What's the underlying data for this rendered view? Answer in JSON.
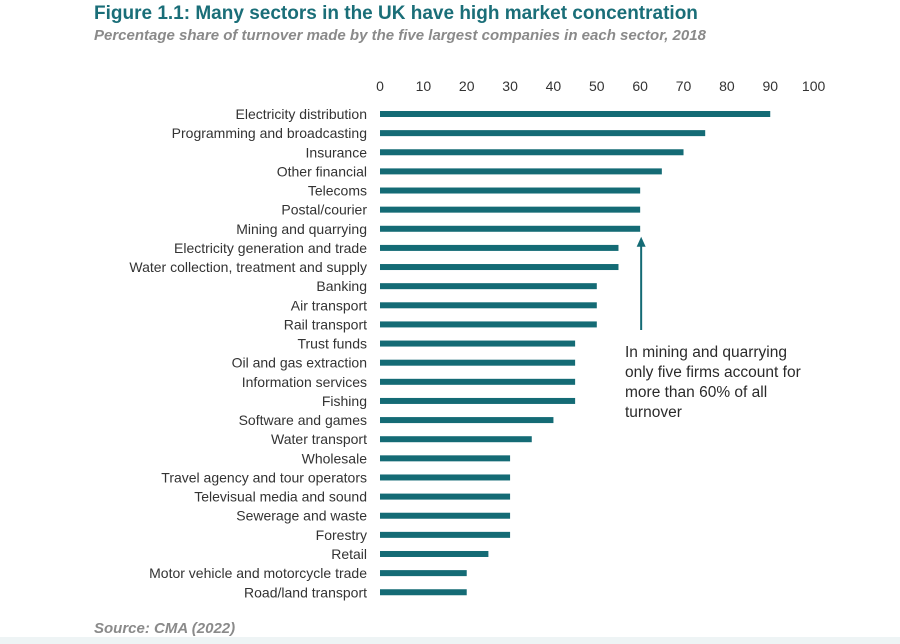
{
  "title": "Figure 1.1: Many sectors in the UK have high market concentration",
  "subtitle": "Percentage share of turnover made by the five largest companies in each sector, 2018",
  "source": "Source: CMA (2022)",
  "colors": {
    "bar": "#146b75",
    "title": "#1a6e78",
    "arrow": "#146b75"
  },
  "chart_data": {
    "type": "bar",
    "orientation": "horizontal",
    "categories": [
      "Electricity distribution",
      "Programming and broadcasting",
      "Insurance",
      "Other financial",
      "Telecoms",
      "Postal/courier",
      "Mining and quarrying",
      "Electricity generation and trade",
      "Water collection, treatment and supply",
      "Banking",
      "Air transport",
      "Rail transport",
      "Trust funds",
      "Oil and gas extraction",
      "Information services",
      "Fishing",
      "Software and games",
      "Water transport",
      "Wholesale",
      "Travel agency and tour operators",
      "Televisual media and sound",
      "Sewerage and waste",
      "Forestry",
      "Retail",
      "Motor vehicle and motorcycle trade",
      "Road/land transport"
    ],
    "values": [
      90,
      75,
      70,
      65,
      60,
      60,
      60,
      55,
      55,
      50,
      50,
      50,
      45,
      45,
      45,
      45,
      40,
      35,
      30,
      30,
      30,
      30,
      30,
      25,
      20,
      20
    ],
    "xlim": [
      0,
      100
    ],
    "xticks": [
      0,
      10,
      20,
      30,
      40,
      50,
      60,
      70,
      80,
      90,
      100
    ],
    "axis_position": "top",
    "grid": false,
    "title": "Figure 1.1: Many sectors in the UK have high market concentration",
    "annotation": {
      "target": "Mining and quarrying",
      "lines": [
        "In mining and quarrying",
        "only five firms account for",
        "more than 60% of all",
        "turnover"
      ]
    }
  }
}
